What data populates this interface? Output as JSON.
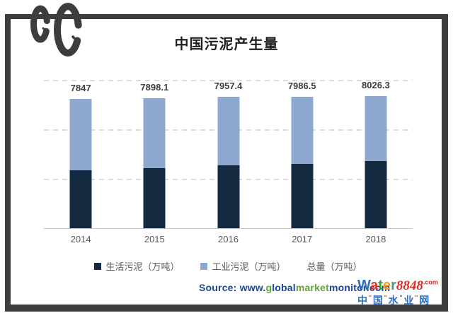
{
  "title": "中国污泥产生量",
  "chart_data": {
    "type": "bar",
    "stacked": true,
    "title": "中国污泥产生量",
    "categories": [
      "2014",
      "2015",
      "2016",
      "2017",
      "2018"
    ],
    "series": [
      {
        "name": "生活污泥（万吨）",
        "color": "#132a40",
        "values": [
          3515,
          3643,
          3814,
          3900,
          4071
        ]
      },
      {
        "name": "工业污泥（万吨）",
        "color": "#8fa8cf",
        "values": [
          4332,
          4255.1,
          4143.4,
          4086.5,
          3955.3
        ]
      }
    ],
    "totals": {
      "name": "总量（万吨）",
      "values": [
        7847,
        7898.1,
        7957.4,
        7986.5,
        8026.3
      ]
    },
    "xlabel": "",
    "ylabel": "",
    "ylim": [
      0,
      9000
    ],
    "gridline_values": [
      0,
      3000,
      6000,
      9000
    ],
    "grid": "horizontal-dashed",
    "legend_position": "bottom"
  },
  "source": {
    "prefix": "Source: www.",
    "seg_g": "g",
    "seg_lobal": "lobal",
    "seg_market": "market",
    "seg_monitor": "monitor.com",
    "blue": "#1b4694",
    "green": "#63a33a"
  },
  "watermark": {
    "word": [
      {
        "ch": "W",
        "color": "#2e6fc0"
      },
      {
        "ch": "a",
        "color": "#e03a2c"
      },
      {
        "ch": "t",
        "color": "#3f9e3c"
      },
      {
        "ch": "e",
        "color": "#f2991c"
      },
      {
        "ch": "r",
        "color": "#3f9e8c"
      }
    ],
    "number": "8848",
    "number_color": "#e02a1e",
    "dotcom": ".com",
    "cn": "中国水业网",
    "cn_color": "#2b6fc4",
    "tick": "''",
    "tick_color": "#e02a1e"
  }
}
